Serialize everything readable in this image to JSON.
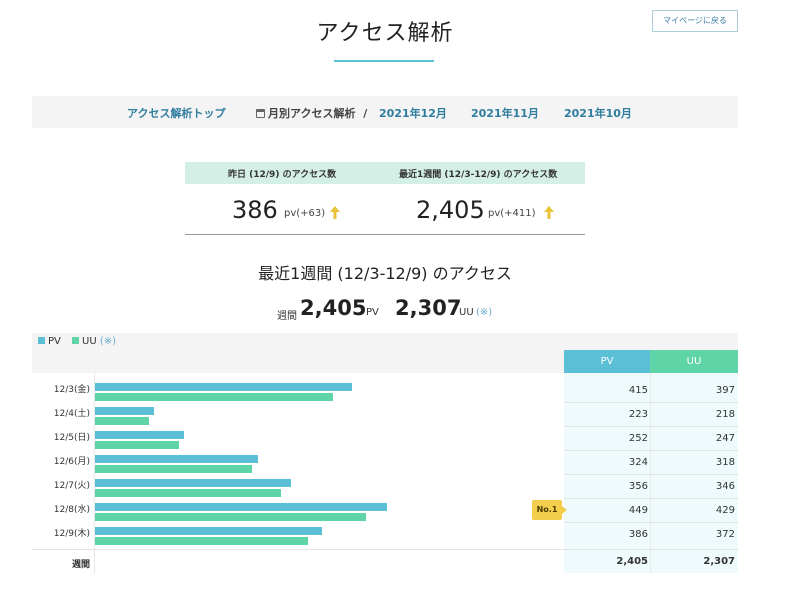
{
  "header": {
    "title": "アクセス解析",
    "mypage_button": "マイページに戻る"
  },
  "nav": {
    "top_link": "アクセス解析トップ",
    "monthly_label": "月別アクセス解析",
    "separator": "/",
    "months": [
      "2021年12月",
      "2021年11月",
      "2021年10月"
    ]
  },
  "summary": {
    "yesterday": {
      "label": "昨日 (12/9) のアクセス数",
      "value": "386",
      "diff": "pv(+63)"
    },
    "week": {
      "label": "最近1週間 (12/3-12/9) のアクセス数",
      "value": "2,405",
      "diff": "pv(+411)"
    }
  },
  "weekly": {
    "heading": "最近1週間 (12/3-12/9) のアクセス",
    "prefix": "週間",
    "pv_total": "2,405",
    "pv_unit": "PV",
    "uu_total": "2,307",
    "uu_unit": "UU",
    "note": "(※)"
  },
  "colors": {
    "pv": "#5bc0d6",
    "uu": "#5fd4a6",
    "badge": "#f3cd4c",
    "up_arrow": "#e9c23a"
  },
  "chart_data": {
    "type": "bar",
    "legend": [
      {
        "name": "PV",
        "suffix": ""
      },
      {
        "name": "UU",
        "suffix": "(※)"
      }
    ],
    "column_headers": [
      "PV",
      "UU"
    ],
    "categories": [
      "12/3(金)",
      "12/4(土)",
      "12/5(日)",
      "12/6(月)",
      "12/7(火)",
      "12/8(水)",
      "12/9(木)"
    ],
    "series": [
      {
        "name": "PV",
        "values": [
          415,
          223,
          252,
          324,
          356,
          449,
          386
        ]
      },
      {
        "name": "UU",
        "values": [
          397,
          218,
          247,
          318,
          346,
          429,
          372
        ]
      }
    ],
    "xlim": [
      185,
      449
    ],
    "totals": {
      "label": "週間",
      "pv": "2,405",
      "uu": "2,307"
    },
    "badge": {
      "text": "No.1",
      "category": "12/8(水)"
    }
  }
}
